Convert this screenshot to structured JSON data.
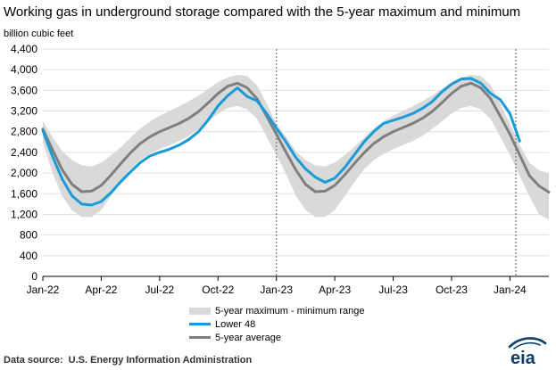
{
  "header": {
    "title": "Working gas in underground  storage compared with the 5-year maximum and minimum",
    "unit": "billion cubic feet"
  },
  "chart_data": {
    "type": "area",
    "title": "Working gas in underground  storage compared with the 5-year maximum and minimum",
    "ylabel": "billion cubic feet",
    "ylim": [
      0,
      4400
    ],
    "yticks": [
      0,
      400,
      800,
      1200,
      1600,
      2000,
      2400,
      2800,
      3200,
      3600,
      4000,
      4400
    ],
    "ytick_labels": [
      "0",
      "400",
      "800",
      "1,200",
      "1,600",
      "2,000",
      "2,400",
      "2,800",
      "3,200",
      "3,600",
      "4,000",
      "4,400"
    ],
    "xlim": [
      0,
      26
    ],
    "xticks": [
      0,
      3,
      6,
      9,
      12,
      15,
      18,
      21,
      24
    ],
    "xtick_labels": [
      "Jan-22",
      "Apr-22",
      "Jul-22",
      "Oct-22",
      "Jan-23",
      "Apr-23",
      "Jul-23",
      "Oct-23",
      "Jan-24"
    ],
    "x_unit": "months since Jan-22",
    "grid": "horizontal",
    "reference_lines": [
      {
        "x": 12.0
      },
      {
        "x": 24.3
      }
    ],
    "series": [
      {
        "name": "5-year maximum - minimum range",
        "kind": "band",
        "x": [
          0,
          0.5,
          1,
          1.5,
          2,
          2.5,
          3,
          3.5,
          4,
          4.5,
          5,
          5.5,
          6,
          6.5,
          7,
          7.5,
          8,
          8.5,
          9,
          9.5,
          10,
          10.5,
          11,
          11.5,
          12,
          12.5,
          13,
          13.5,
          14,
          14.5,
          15,
          15.5,
          16,
          16.5,
          17,
          17.5,
          18,
          18.5,
          19,
          19.5,
          20,
          20.5,
          21,
          21.5,
          22,
          22.5,
          23,
          23.5,
          24,
          24.5,
          25,
          25.5,
          26
        ],
        "max": [
          3000,
          2700,
          2420,
          2250,
          2150,
          2130,
          2200,
          2340,
          2500,
          2680,
          2860,
          3000,
          3110,
          3200,
          3290,
          3390,
          3500,
          3630,
          3760,
          3850,
          3900,
          3880,
          3700,
          3350,
          2950,
          2700,
          2420,
          2250,
          2150,
          2130,
          2200,
          2340,
          2500,
          2680,
          2860,
          3000,
          3110,
          3200,
          3290,
          3390,
          3500,
          3630,
          3760,
          3850,
          3900,
          3880,
          3700,
          3350,
          2950,
          2550,
          2200,
          2050,
          2000
        ],
        "min": [
          2600,
          2000,
          1550,
          1280,
          1150,
          1150,
          1280,
          1550,
          1820,
          2070,
          2250,
          2370,
          2460,
          2540,
          2620,
          2720,
          2850,
          3000,
          3150,
          3260,
          3300,
          3230,
          3050,
          2700,
          2350,
          1980,
          1560,
          1280,
          1150,
          1150,
          1280,
          1550,
          1820,
          2070,
          2250,
          2370,
          2460,
          2540,
          2620,
          2720,
          2850,
          3000,
          3150,
          3260,
          3300,
          3230,
          3050,
          2700,
          2350,
          1950,
          1550,
          1200,
          1100
        ]
      },
      {
        "name": "Lower 48",
        "kind": "line",
        "color": "#1a9bd7",
        "x": [
          0,
          0.5,
          1,
          1.5,
          2,
          2.5,
          3,
          3.5,
          4,
          4.5,
          5,
          5.5,
          6,
          6.5,
          7,
          7.5,
          8,
          8.5,
          9,
          9.5,
          10,
          10.5,
          11,
          11.5,
          12,
          12.5,
          13,
          13.5,
          14,
          14.5,
          15,
          15.5,
          16,
          16.5,
          17,
          17.5,
          18,
          18.5,
          19,
          19.5,
          20,
          20.5,
          21,
          21.5,
          22,
          22.5,
          23,
          23.5,
          24,
          24.5
        ],
        "values": [
          2820,
          2320,
          1880,
          1560,
          1400,
          1380,
          1450,
          1620,
          1830,
          2020,
          2200,
          2330,
          2400,
          2460,
          2540,
          2650,
          2800,
          3030,
          3300,
          3500,
          3650,
          3480,
          3400,
          3150,
          2870,
          2600,
          2300,
          2080,
          1920,
          1820,
          1900,
          2100,
          2350,
          2600,
          2800,
          2960,
          3020,
          3080,
          3150,
          3250,
          3380,
          3570,
          3720,
          3820,
          3830,
          3740,
          3540,
          3420,
          3150,
          2620
        ]
      },
      {
        "name": "5-year average",
        "kind": "line",
        "color": "#7f7f7f",
        "x": [
          0,
          0.5,
          1,
          1.5,
          2,
          2.5,
          3,
          3.5,
          4,
          4.5,
          5,
          5.5,
          6,
          6.5,
          7,
          7.5,
          8,
          8.5,
          9,
          9.5,
          10,
          10.5,
          11,
          11.5,
          12,
          12.5,
          13,
          13.5,
          14,
          14.5,
          15,
          15.5,
          16,
          16.5,
          17,
          17.5,
          18,
          18.5,
          19,
          19.5,
          20,
          20.5,
          21,
          21.5,
          22,
          22.5,
          23,
          23.5,
          24,
          24.5,
          25,
          25.5,
          26
        ],
        "values": [
          2850,
          2450,
          2060,
          1780,
          1640,
          1650,
          1760,
          1960,
          2180,
          2390,
          2570,
          2700,
          2800,
          2880,
          2960,
          3060,
          3190,
          3360,
          3540,
          3680,
          3740,
          3650,
          3440,
          3100,
          2750,
          2400,
          2060,
          1780,
          1640,
          1650,
          1760,
          1960,
          2180,
          2390,
          2570,
          2700,
          2800,
          2880,
          2960,
          3060,
          3190,
          3360,
          3540,
          3680,
          3740,
          3650,
          3440,
          3100,
          2750,
          2350,
          1950,
          1750,
          1630
        ]
      }
    ]
  },
  "legend": {
    "range": "5-year maximum - minimum range",
    "lower48": "Lower 48",
    "average": "5-year average"
  },
  "footer": {
    "source_label": "Data source:",
    "source_text": "U.S. Energy Information Administration",
    "logo_text": "eia"
  },
  "colors": {
    "range": "#d9d9d9",
    "lower48": "#1a9bd7",
    "average": "#7f7f7f",
    "grid": "#e1e1e1",
    "logo": "#0a3e6b"
  }
}
